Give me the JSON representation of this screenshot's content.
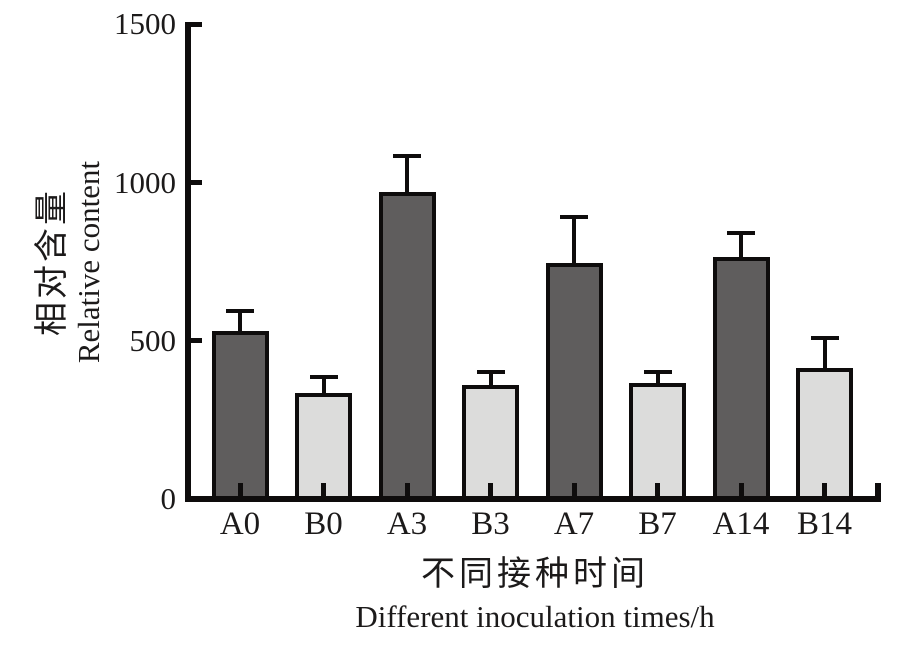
{
  "chart_data": {
    "type": "bar",
    "categories": [
      "A0",
      "B0",
      "A3",
      "B3",
      "A7",
      "B7",
      "A14",
      "B14"
    ],
    "values": [
      530,
      335,
      970,
      360,
      745,
      365,
      765,
      415
    ],
    "errors": [
      65,
      50,
      115,
      40,
      145,
      35,
      75,
      95
    ],
    "bar_styles": [
      "dark",
      "light",
      "dark",
      "light",
      "dark",
      "light",
      "dark",
      "light"
    ],
    "title": "",
    "xlabel_zh": "不同接种时间",
    "xlabel_en": "Different inoculation times/h",
    "ylabel_zh": "相对含量",
    "ylabel_en": "Relative content",
    "yticks": [
      0,
      500,
      1000,
      1500
    ],
    "ylim": [
      0,
      1500
    ],
    "grid": false,
    "legend": "none",
    "error_bar_style": "upper-cap-only",
    "colors": {
      "dark_bar": "#5f5d5d",
      "light_bar": "#dcdcdb",
      "axis": "#0e0c0c",
      "text": "#1c1a1a",
      "background": "#ffffff"
    }
  }
}
